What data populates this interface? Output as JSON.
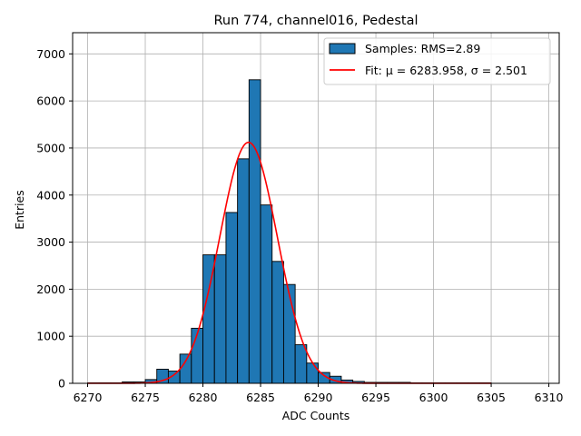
{
  "chart_data": {
    "type": "bar",
    "title": "Run 774, channel016, Pedestal",
    "xlabel": "ADC Counts",
    "ylabel": "Entries",
    "xlim": [
      6268.7,
      6310.9
    ],
    "ylim": [
      0,
      7450
    ],
    "xticks": [
      6270,
      6275,
      6280,
      6285,
      6290,
      6295,
      6300,
      6305,
      6310
    ],
    "yticks": [
      0,
      1000,
      2000,
      3000,
      4000,
      5000,
      6000,
      7000
    ],
    "grid": true,
    "legend_position": "top-right",
    "colors": {
      "bars": "#1f77b4",
      "bar_edge": "#000000",
      "fit": "#ff0000",
      "grid": "#b0b0b0"
    },
    "series": [
      {
        "name": "Samples: RMS=2.89",
        "kind": "histogram",
        "bin_width": 1,
        "bins": [
          {
            "start": 6270,
            "count": 10
          },
          {
            "start": 6271,
            "count": 10
          },
          {
            "start": 6272,
            "count": 10
          },
          {
            "start": 6273,
            "count": 30
          },
          {
            "start": 6274,
            "count": 30
          },
          {
            "start": 6275,
            "count": 80
          },
          {
            "start": 6276,
            "count": 300
          },
          {
            "start": 6277,
            "count": 260
          },
          {
            "start": 6278,
            "count": 620
          },
          {
            "start": 6279,
            "count": 1170
          },
          {
            "start": 6280,
            "count": 2730
          },
          {
            "start": 6281,
            "count": 2730
          },
          {
            "start": 6282,
            "count": 3630
          },
          {
            "start": 6283,
            "count": 4770
          },
          {
            "start": 6284,
            "count": 6450
          },
          {
            "start": 6285,
            "count": 3790
          },
          {
            "start": 6286,
            "count": 2590
          },
          {
            "start": 6287,
            "count": 2100
          },
          {
            "start": 6288,
            "count": 820
          },
          {
            "start": 6289,
            "count": 430
          },
          {
            "start": 6290,
            "count": 230
          },
          {
            "start": 6291,
            "count": 150
          },
          {
            "start": 6292,
            "count": 70
          },
          {
            "start": 6293,
            "count": 40
          },
          {
            "start": 6294,
            "count": 20
          },
          {
            "start": 6295,
            "count": 20
          },
          {
            "start": 6296,
            "count": 20
          },
          {
            "start": 6297,
            "count": 20
          },
          {
            "start": 6298,
            "count": 10
          },
          {
            "start": 6299,
            "count": 10
          },
          {
            "start": 6300,
            "count": 10
          },
          {
            "start": 6301,
            "count": 10
          },
          {
            "start": 6302,
            "count": 10
          },
          {
            "start": 6303,
            "count": 10
          },
          {
            "start": 6304,
            "count": 10
          }
        ]
      },
      {
        "name": "Fit: μ = 6283.958, σ = 2.501",
        "kind": "gaussian_fit",
        "mu": 6283.958,
        "sigma": 2.501,
        "amplitude": 5120,
        "x_range": [
          6270,
          6305
        ]
      }
    ]
  }
}
